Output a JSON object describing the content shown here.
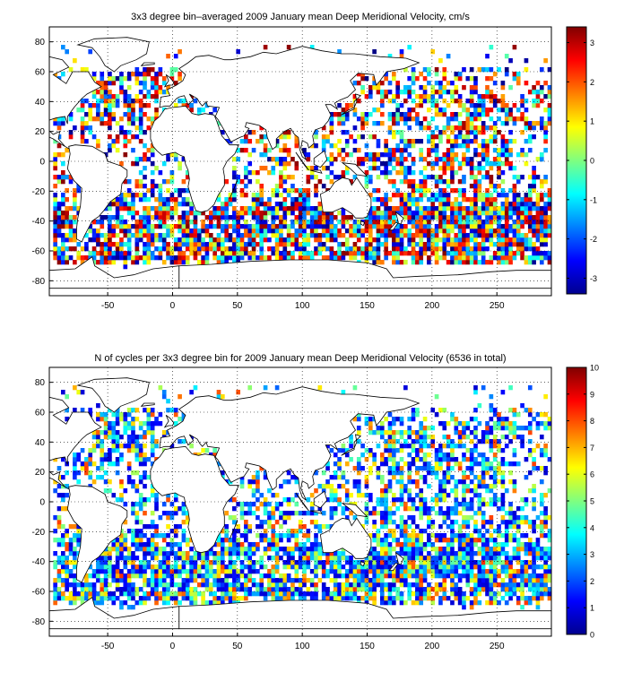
{
  "chart_data": [
    {
      "type": "heatmap",
      "title": "3x3 degree bin–averaged 2009 January mean Deep Meridional Velocity, cm/s",
      "xlabel": "",
      "ylabel": "",
      "x_ticks": [
        "-50",
        "0",
        "50",
        "100",
        "150",
        "200",
        "250"
      ],
      "y_ticks": [
        "80",
        "60",
        "40",
        "20",
        "0",
        "-20",
        "-40",
        "-60",
        "-80"
      ],
      "xlim": [
        -95,
        292
      ],
      "ylim": [
        -90,
        90
      ],
      "bin_size_deg": 3,
      "grid": true,
      "colorbar": {
        "range": [
          -3.4,
          3.4
        ],
        "ticks": [
          "3",
          "2",
          "1",
          "0",
          "-1",
          "-2",
          "-3"
        ],
        "colormap": "jet"
      },
      "basemap": "world coastlines"
    },
    {
      "type": "heatmap",
      "title": "N of cycles per 3x3 degree bin for 2009 January mean Deep Meridional Velocity (6536 in total)",
      "xlabel": "",
      "ylabel": "",
      "x_ticks": [
        "-50",
        "0",
        "50",
        "100",
        "150",
        "200",
        "250"
      ],
      "y_ticks": [
        "80",
        "60",
        "40",
        "20",
        "0",
        "-20",
        "-40",
        "-60",
        "-80"
      ],
      "xlim": [
        -95,
        292
      ],
      "ylim": [
        -90,
        90
      ],
      "bin_size_deg": 3,
      "grid": true,
      "colorbar": {
        "range": [
          0,
          10
        ],
        "ticks": [
          "10",
          "9",
          "8",
          "7",
          "6",
          "5",
          "4",
          "3",
          "2",
          "1",
          "0"
        ],
        "colormap": "jet"
      },
      "basemap": "world coastlines"
    }
  ]
}
